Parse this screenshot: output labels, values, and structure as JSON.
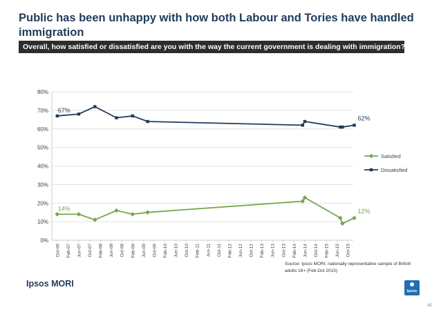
{
  "title": "Public has been unhappy with how both Labour and Tories have handled immigration",
  "question": "Overall, how satisfied or dissatisfied are you with the way the current government is dealing with immigration?",
  "source": "Source: Ipsos MORI; nationally representative sample of British adults 16+ (Feb-Oct 2015)",
  "brand": "Ipsos MORI",
  "logo_text": "Ipsos",
  "page_number": "45",
  "colors": {
    "satisfied": "#77a54a",
    "dissatisfied": "#1f3c5a",
    "title": "#1f3c5a",
    "banner": "#2d2d2d"
  },
  "chart_data": {
    "type": "line",
    "categories": [
      "Oct-06",
      "Feb-07",
      "Jun-07",
      "Oct-07",
      "Feb-08",
      "Jun-08",
      "Oct-08",
      "Feb-09",
      "Jun-09",
      "Oct-09",
      "Feb-10",
      "Jun-10",
      "Oct-10",
      "Feb-11",
      "Jun-11",
      "Oct-11",
      "Feb-12",
      "Jun-12",
      "Oct-12",
      "Feb-13",
      "Jun-13",
      "Oct-13",
      "Feb-14",
      "Jun-14",
      "Oct-14",
      "Feb-15",
      "Jun-15",
      "Oct-15"
    ],
    "ylim": [
      0,
      80
    ],
    "yticks": [
      "0%",
      "10%",
      "20%",
      "30%",
      "40%",
      "50%",
      "60%",
      "70%",
      "80%"
    ],
    "legend_position": "right",
    "series": [
      {
        "name": "Satisfied",
        "color": "#77a54a",
        "points": [
          [
            0,
            14
          ],
          [
            2,
            14
          ],
          [
            3.5,
            11
          ],
          [
            5.5,
            16
          ],
          [
            7,
            14
          ],
          [
            8.4,
            15
          ],
          [
            22.8,
            21
          ],
          [
            23,
            23
          ],
          [
            26.3,
            12
          ],
          [
            26.5,
            9
          ],
          [
            27.6,
            12
          ]
        ],
        "labels": [
          {
            "index": 0,
            "text": "14%"
          },
          {
            "index": 10,
            "text": "12%"
          }
        ]
      },
      {
        "name": "Dissatisfied",
        "color": "#1f3c5a",
        "points": [
          [
            0,
            67
          ],
          [
            2,
            68
          ],
          [
            3.5,
            72
          ],
          [
            5.5,
            66
          ],
          [
            7,
            67
          ],
          [
            8.4,
            64
          ],
          [
            22.8,
            62
          ],
          [
            23,
            64
          ],
          [
            26.3,
            61
          ],
          [
            26.5,
            61
          ],
          [
            27.6,
            62
          ]
        ],
        "labels": [
          {
            "index": 0,
            "text": "67%"
          },
          {
            "index": 10,
            "text": "62%"
          }
        ]
      }
    ]
  }
}
